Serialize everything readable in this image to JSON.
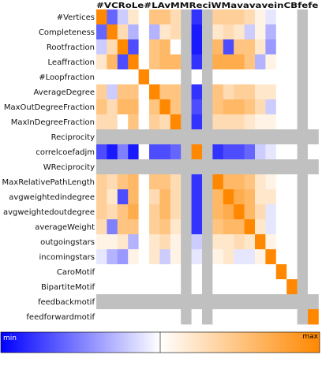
{
  "chart_data": {
    "type": "heatmap",
    "rows": [
      "#Vertices",
      "Completeness",
      "Rootfraction",
      "Leaffraction",
      "#Loopfraction",
      "AverageDegree",
      "MaxOutDegreeFraction",
      "MaxInDegreeFraction",
      "Reciprocity",
      "correlcoefadjm",
      "WReciprocity",
      "MaxRelativePathLength",
      "avgweightedindegree",
      "avgweightedoutdegree",
      "averageWeight",
      "outgoingstars",
      "incomingstars",
      "CaroMotif",
      "BipartiteMotif",
      "feedbackmotif",
      "feedforwardmotif"
    ],
    "columns": [
      "#Vertices",
      "Completeness",
      "Rootfraction",
      "Leaffraction",
      "#Loopfraction",
      "AverageDegree",
      "MaxOutDegreeFraction",
      "MaxInDegreeFraction",
      "Reciprocity",
      "correlcoefadjm",
      "WReciprocity",
      "MaxRelativePathLength",
      "avgweightedindegree",
      "avgweightedoutdegree",
      "averageWeight",
      "outgoingstars",
      "incomingstars",
      "CaroMotif",
      "BipartiteMotif",
      "feedbackmotif",
      "feedforwardmotif"
    ],
    "column_header_text": "#VCRoLe#LAvMMReciWMavavaveinCBfefe",
    "values": [
      [
        1.0,
        -0.6,
        -0.2,
        0.2,
        0.0,
        0.5,
        0.5,
        0.3,
        null,
        -0.8,
        null,
        0.4,
        0.4,
        0.4,
        0.3,
        0.1,
        -0.1,
        0.0,
        0.0,
        null,
        0.0
      ],
      [
        -0.6,
        1.0,
        0.3,
        -0.3,
        0.0,
        -0.3,
        0.2,
        0.3,
        null,
        -0.9,
        null,
        0.2,
        0.3,
        0.2,
        -0.2,
        0.1,
        -0.3,
        0.0,
        0.0,
        null,
        0.0
      ],
      [
        -0.2,
        0.3,
        1.0,
        -0.7,
        0.0,
        0.5,
        0.6,
        0.0,
        null,
        -0.9,
        null,
        0.6,
        -0.7,
        0.5,
        0.5,
        0.2,
        -0.4,
        0.0,
        0.0,
        null,
        0.0
      ],
      [
        0.2,
        0.6,
        -0.7,
        1.0,
        0.0,
        0.5,
        0.6,
        0.6,
        null,
        -0.8,
        null,
        0.7,
        0.7,
        0.7,
        0.5,
        -0.3,
        0.1,
        0.0,
        0.0,
        null,
        0.0
      ],
      [
        0.0,
        0.0,
        0.0,
        0.0,
        1.0,
        0.0,
        0.0,
        0.0,
        null,
        0.0,
        null,
        0.0,
        0.0,
        0.0,
        0.0,
        0.0,
        0.0,
        0.0,
        0.0,
        null,
        0.0
      ],
      [
        0.4,
        -0.2,
        0.5,
        0.5,
        0.0,
        1.0,
        0.5,
        0.5,
        null,
        -0.8,
        null,
        0.5,
        0.3,
        0.4,
        0.4,
        0.2,
        0.2,
        0.0,
        0.0,
        null,
        0.0
      ],
      [
        0.5,
        0.3,
        0.6,
        0.6,
        0.0,
        0.5,
        1.0,
        0.5,
        null,
        -0.7,
        null,
        0.5,
        0.6,
        0.6,
        0.5,
        0.3,
        -0.2,
        0.0,
        0.0,
        null,
        0.0
      ],
      [
        0.3,
        0.3,
        0.0,
        0.5,
        0.0,
        0.4,
        0.3,
        1.0,
        null,
        -0.8,
        null,
        0.3,
        0.3,
        0.3,
        0.2,
        0.1,
        0.1,
        0.0,
        0.0,
        null,
        0.0
      ],
      [
        null,
        null,
        null,
        null,
        null,
        null,
        null,
        null,
        null,
        null,
        null,
        null,
        null,
        null,
        null,
        null,
        null,
        null,
        null,
        null,
        null
      ],
      [
        -0.7,
        -0.9,
        -0.5,
        -0.9,
        0.0,
        -0.7,
        -0.7,
        -0.6,
        null,
        1.0,
        null,
        -0.8,
        -0.7,
        -0.7,
        -0.6,
        -0.2,
        -0.1,
        0.0,
        0.0,
        null,
        0.0
      ],
      [
        null,
        null,
        null,
        null,
        null,
        null,
        null,
        null,
        null,
        null,
        null,
        null,
        null,
        null,
        null,
        null,
        null,
        null,
        null,
        null,
        null
      ],
      [
        0.4,
        0.3,
        0.5,
        0.6,
        0.0,
        0.5,
        0.5,
        0.3,
        null,
        -0.8,
        null,
        1.0,
        0.6,
        0.6,
        0.5,
        0.2,
        0.1,
        0.0,
        0.0,
        null,
        0.0
      ],
      [
        0.4,
        0.2,
        -0.7,
        0.6,
        0.0,
        0.3,
        0.6,
        0.3,
        null,
        -0.8,
        null,
        0.6,
        1.0,
        0.7,
        0.6,
        0.2,
        0.2,
        0.0,
        0.0,
        null,
        0.0
      ],
      [
        0.4,
        0.3,
        0.5,
        0.7,
        0.0,
        0.4,
        0.6,
        0.3,
        null,
        -0.8,
        null,
        0.6,
        0.7,
        1.0,
        0.6,
        0.3,
        -0.1,
        0.0,
        0.0,
        null,
        0.0
      ],
      [
        0.3,
        -0.5,
        0.5,
        0.5,
        0.0,
        0.4,
        0.5,
        0.2,
        null,
        -0.8,
        null,
        0.5,
        0.6,
        0.6,
        1.0,
        0.2,
        -0.1,
        0.0,
        0.0,
        null,
        0.0
      ],
      [
        0.1,
        0.1,
        0.2,
        -0.3,
        0.0,
        0.2,
        0.3,
        0.1,
        null,
        -0.2,
        null,
        0.2,
        0.2,
        0.3,
        0.2,
        1.0,
        0.1,
        0.0,
        0.0,
        null,
        0.0
      ],
      [
        -0.1,
        -0.3,
        -0.4,
        0.1,
        0.0,
        0.2,
        -0.2,
        0.1,
        null,
        -0.1,
        null,
        0.1,
        0.2,
        -0.1,
        -0.1,
        0.1,
        1.0,
        0.0,
        0.0,
        null,
        0.0
      ],
      [
        0.0,
        0.0,
        0.0,
        0.0,
        0.0,
        0.0,
        0.0,
        0.0,
        null,
        0.0,
        null,
        0.0,
        0.0,
        0.0,
        0.0,
        0.0,
        0.0,
        1.0,
        0.0,
        null,
        0.0
      ],
      [
        0.0,
        0.0,
        0.0,
        0.0,
        0.0,
        0.0,
        0.0,
        0.0,
        null,
        0.0,
        null,
        0.0,
        0.0,
        0.0,
        0.0,
        0.0,
        0.0,
        0.0,
        1.0,
        null,
        0.0
      ],
      [
        null,
        null,
        null,
        null,
        null,
        null,
        null,
        null,
        null,
        null,
        null,
        null,
        null,
        null,
        null,
        null,
        null,
        null,
        null,
        null,
        null
      ],
      [
        0.0,
        0.0,
        0.0,
        0.0,
        0.0,
        0.0,
        0.0,
        0.0,
        null,
        0.0,
        null,
        0.0,
        0.0,
        0.0,
        0.0,
        0.0,
        0.0,
        0.0,
        0.0,
        null,
        1.0
      ]
    ],
    "value_range": [
      -1,
      1
    ],
    "colors": {
      "min": "#0000ff",
      "mid": "#ffffff",
      "max": "#ff8800",
      "missing": "#c0c0c0"
    },
    "legend": {
      "min_label": "min",
      "max_label": "max",
      "placement": "bottom"
    },
    "grid": false
  }
}
